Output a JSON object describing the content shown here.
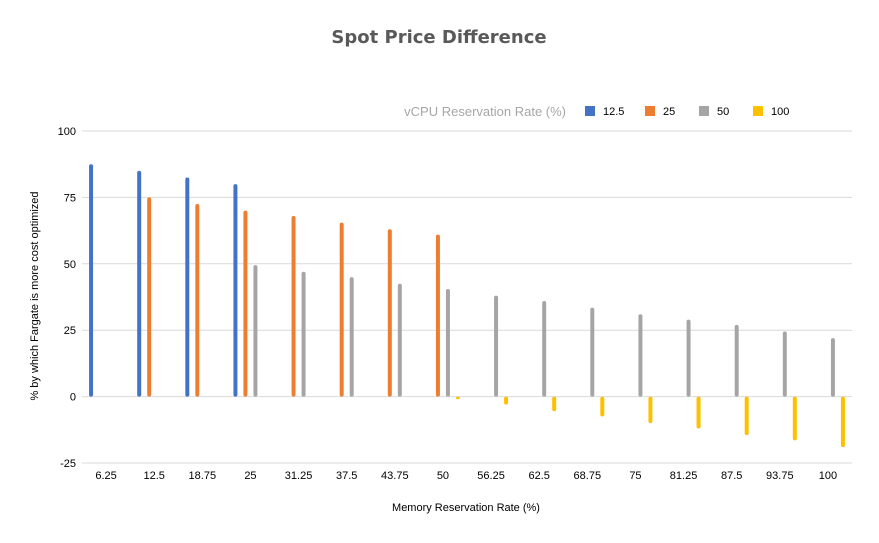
{
  "chart_data": {
    "type": "bar",
    "title": "Spot Price Difference",
    "xlabel": "Memory Reservation Rate (%)",
    "ylabel": "% by which Fargate is more cost optimized",
    "ylim": [
      -25,
      100
    ],
    "yticks": [
      100,
      75,
      50,
      25,
      0,
      -25
    ],
    "grid": true,
    "legend_title": "vCPU Reservation Rate (%)",
    "legend_placement": "top-right",
    "categories": [
      "6.25",
      "12.5",
      "18.75",
      "25",
      "31.25",
      "37.5",
      "43.75",
      "50",
      "56.25",
      "62.5",
      "68.75",
      "75",
      "81.25",
      "87.5",
      "93.75",
      "100"
    ],
    "series": [
      {
        "name": "12.5",
        "color": "#4472c4",
        "values": [
          87.5,
          85,
          82.5,
          80,
          null,
          null,
          null,
          null,
          null,
          null,
          null,
          null,
          null,
          null,
          null,
          null
        ]
      },
      {
        "name": "25",
        "color": "#ed7d31",
        "values": [
          null,
          75,
          72.5,
          70,
          68,
          65.5,
          63,
          61,
          null,
          null,
          null,
          null,
          null,
          null,
          null,
          null
        ]
      },
      {
        "name": "50",
        "color": "#a5a5a5",
        "values": [
          null,
          null,
          null,
          49.5,
          47,
          45,
          42.5,
          40.5,
          38,
          36,
          33.5,
          31,
          29,
          27,
          24.5,
          22
        ]
      },
      {
        "name": "100",
        "color": "#ffc000",
        "values": [
          null,
          null,
          null,
          null,
          null,
          null,
          null,
          -1,
          -3,
          -5.5,
          -7.5,
          -10,
          -12,
          -14.5,
          -16.5,
          -19
        ]
      }
    ]
  }
}
